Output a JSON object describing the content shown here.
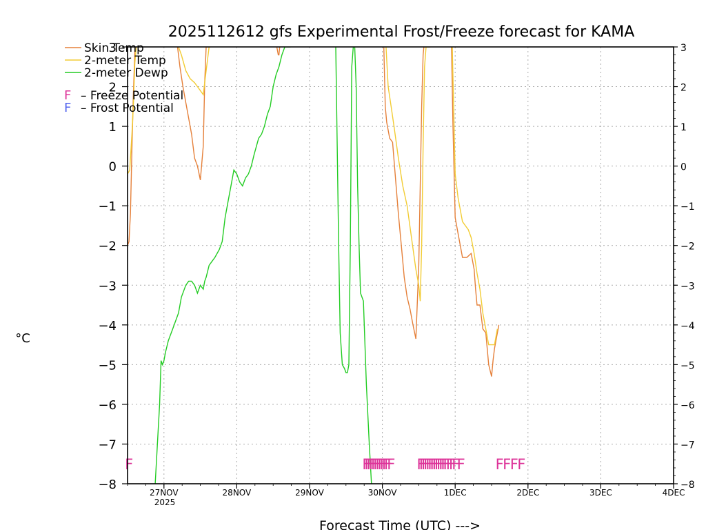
{
  "chart_data": {
    "type": "line",
    "title": "2025112612 gfs Experimental Frost/Freeze forecast for KAMA",
    "xlabel": "Forecast Time (UTC) --->",
    "ylabel": "°C",
    "ylim": [
      -8,
      3
    ],
    "xlim": [
      0,
      7.5
    ],
    "y_ticks": [
      3,
      2,
      1,
      0,
      -1,
      -2,
      -3,
      -4,
      -5,
      -6,
      -7,
      -8
    ],
    "y_tick_labels": [
      "3",
      "2",
      "1",
      "0",
      "−1",
      "−2",
      "−3",
      "−4",
      "−5",
      "−6",
      "−7",
      "−8"
    ],
    "x_ticks": [
      0.5,
      1.5,
      2.5,
      3.5,
      4.5,
      5.5,
      6.5,
      7.5
    ],
    "x_tick_labels": [
      "27NOV",
      "28NOV",
      "29NOV",
      "30NOV",
      "1DEC",
      "2DEC",
      "3DEC",
      "4DEC"
    ],
    "x_year_label": "2025",
    "grid": true,
    "legend": [
      {
        "label": "Skin Temp",
        "color": "#e5803a"
      },
      {
        "label": "2-meter Temp",
        "color": "#f2cc33"
      },
      {
        "label": "2-meter Dewp",
        "color": "#22cc22"
      }
    ],
    "potential_legend": [
      {
        "symbol": "F",
        "text": "– Freeze Potential",
        "color": "#dd3399"
      },
      {
        "symbol": "F",
        "text": "– Frost Potential",
        "color": "#5566ee"
      }
    ],
    "series": [
      {
        "name": "Skin Temp",
        "color": "#e5803a",
        "x": [
          0.0,
          0.02,
          0.04,
          0.06,
          0.08,
          0.1,
          0.11,
          0.12,
          0.13,
          null,
          0.68,
          0.72,
          0.76,
          0.8,
          0.84,
          0.88,
          0.92,
          0.96,
          1.0,
          1.04,
          1.06,
          1.08,
          1.12,
          1.13,
          1.14,
          null,
          2.05,
          2.07,
          2.08,
          2.09,
          null,
          3.52,
          3.54,
          3.56,
          3.6,
          3.64,
          3.68,
          3.72,
          3.76,
          3.8,
          3.84,
          3.88,
          3.92,
          3.96,
          4.0,
          4.02,
          4.04,
          4.06,
          4.07,
          4.1,
          4.14,
          4.16,
          null,
          4.45,
          4.47,
          4.5,
          4.54,
          4.6,
          4.66,
          4.72,
          4.76,
          4.78,
          4.8,
          4.84,
          4.88,
          4.92,
          4.96,
          5.0,
          5.02,
          5.04,
          5.06,
          5.1
        ],
        "values": [
          -2.0,
          -1.9,
          -1.2,
          0.4,
          1.8,
          2.9,
          3.1,
          3.0,
          3.0,
          null,
          3.1,
          2.5,
          2.0,
          1.6,
          1.2,
          0.8,
          0.2,
          0.0,
          -0.35,
          0.5,
          2.1,
          3.0,
          3.0,
          3.0,
          3.0,
          null,
          3.0,
          2.8,
          2.8,
          3.0,
          null,
          3.0,
          1.5,
          1.1,
          0.7,
          0.6,
          -0.3,
          -1.2,
          -2.0,
          -2.8,
          -3.3,
          -3.6,
          -4.0,
          -4.35,
          -2.5,
          -0.5,
          1.5,
          2.8,
          3.0,
          3.0,
          3.0,
          3.0,
          null,
          3.0,
          1.0,
          -1.3,
          -1.7,
          -2.3,
          -2.3,
          -2.2,
          -2.6,
          -3.1,
          -3.5,
          -3.5,
          -4.1,
          -4.2,
          -5.0,
          -5.3,
          -4.9,
          -4.6,
          -4.4,
          -4.0
        ]
      },
      {
        "name": "2-meter Temp",
        "color": "#f2cc33",
        "x": [
          0.0,
          0.03,
          0.06,
          0.08,
          0.1,
          0.12,
          0.13,
          null,
          0.7,
          0.74,
          0.8,
          0.86,
          0.92,
          0.96,
          1.0,
          1.04,
          1.08,
          1.12,
          null,
          3.55,
          3.58,
          3.62,
          3.66,
          3.72,
          3.78,
          3.84,
          3.9,
          3.96,
          4.0,
          4.02,
          4.04,
          4.06,
          4.08,
          4.1,
          4.14,
          null,
          4.46,
          4.5,
          4.54,
          4.6,
          4.64,
          4.68,
          4.72,
          4.76,
          4.8,
          4.84,
          4.88,
          4.92,
          4.96,
          5.0,
          5.04,
          5.08
        ],
        "values": [
          -0.2,
          -0.1,
          0.8,
          1.5,
          2.6,
          3.0,
          3.0,
          null,
          3.0,
          2.8,
          2.4,
          2.2,
          2.1,
          2.0,
          1.9,
          1.8,
          2.4,
          3.0,
          null,
          3.0,
          2.0,
          1.5,
          1.0,
          0.2,
          -0.5,
          -1.0,
          -1.8,
          -2.6,
          -3.0,
          -3.4,
          -2.0,
          0.5,
          2.5,
          3.0,
          3.0,
          null,
          3.0,
          -0.2,
          -0.8,
          -1.4,
          -1.5,
          -1.6,
          -1.8,
          -2.2,
          -2.7,
          -3.1,
          -3.7,
          -4.1,
          -4.5,
          -4.5,
          -4.5,
          -4.1
        ]
      },
      {
        "name": "2-meter Dewp",
        "color": "#22cc22",
        "x": [
          0.38,
          0.41,
          0.44,
          0.46,
          0.48,
          0.5,
          0.52,
          0.56,
          0.62,
          0.66,
          0.7,
          0.74,
          0.8,
          0.84,
          0.88,
          0.92,
          0.96,
          1.0,
          1.04,
          1.06,
          1.08,
          1.12,
          1.16,
          1.2,
          1.26,
          1.3,
          1.34,
          1.38,
          1.42,
          1.46,
          1.5,
          1.54,
          1.58,
          1.62,
          1.66,
          1.7,
          1.74,
          1.8,
          1.84,
          1.88,
          1.92,
          1.96,
          2.0,
          2.04,
          2.08,
          2.12,
          2.16,
          2.2,
          2.23,
          2.24,
          null,
          2.86,
          2.88,
          2.9,
          2.92,
          2.95,
          2.98,
          3.0,
          3.02,
          3.04,
          3.06,
          3.08,
          3.1,
          3.12,
          3.14,
          3.16,
          3.18,
          3.2,
          3.24,
          3.28,
          3.32,
          3.35
        ],
        "values": [
          -8.0,
          -7.0,
          -6.0,
          -4.9,
          -5.0,
          -4.9,
          -4.7,
          -4.4,
          -4.1,
          -3.9,
          -3.7,
          -3.3,
          -3.0,
          -2.9,
          -2.9,
          -3.0,
          -3.2,
          -3.0,
          -3.1,
          -2.9,
          -2.8,
          -2.5,
          -2.4,
          -2.3,
          -2.1,
          -1.9,
          -1.3,
          -0.9,
          -0.5,
          -0.1,
          -0.2,
          -0.4,
          -0.5,
          -0.3,
          -0.2,
          0.0,
          0.3,
          0.7,
          0.8,
          1.0,
          1.3,
          1.5,
          2.0,
          2.3,
          2.5,
          2.8,
          3.0,
          3.0,
          3.0,
          3.0,
          null,
          3.0,
          0.5,
          -2.0,
          -4.2,
          -5.0,
          -5.1,
          -5.2,
          -5.2,
          -5.0,
          -2.0,
          2.5,
          3.0,
          3.0,
          2.0,
          -0.5,
          -2.0,
          -3.2,
          -3.4,
          -5.5,
          -7.0,
          -8.0
        ]
      }
    ],
    "freeze_markers": {
      "symbol": "F",
      "color": "#dd3399",
      "y": -7.5,
      "x": [
        0.02,
        3.28,
        3.31,
        3.34,
        3.37,
        3.4,
        3.43,
        3.46,
        3.49,
        3.52,
        3.55,
        3.58,
        3.62,
        4.03,
        4.06,
        4.09,
        4.12,
        4.15,
        4.18,
        4.21,
        4.24,
        4.27,
        4.3,
        4.33,
        4.36,
        4.39,
        4.43,
        4.47,
        4.51,
        4.58,
        5.11,
        5.21,
        5.31,
        5.41
      ]
    },
    "frost_markers": {
      "symbol": "F",
      "color": "#5566ee",
      "y": -7.5,
      "x": []
    }
  }
}
